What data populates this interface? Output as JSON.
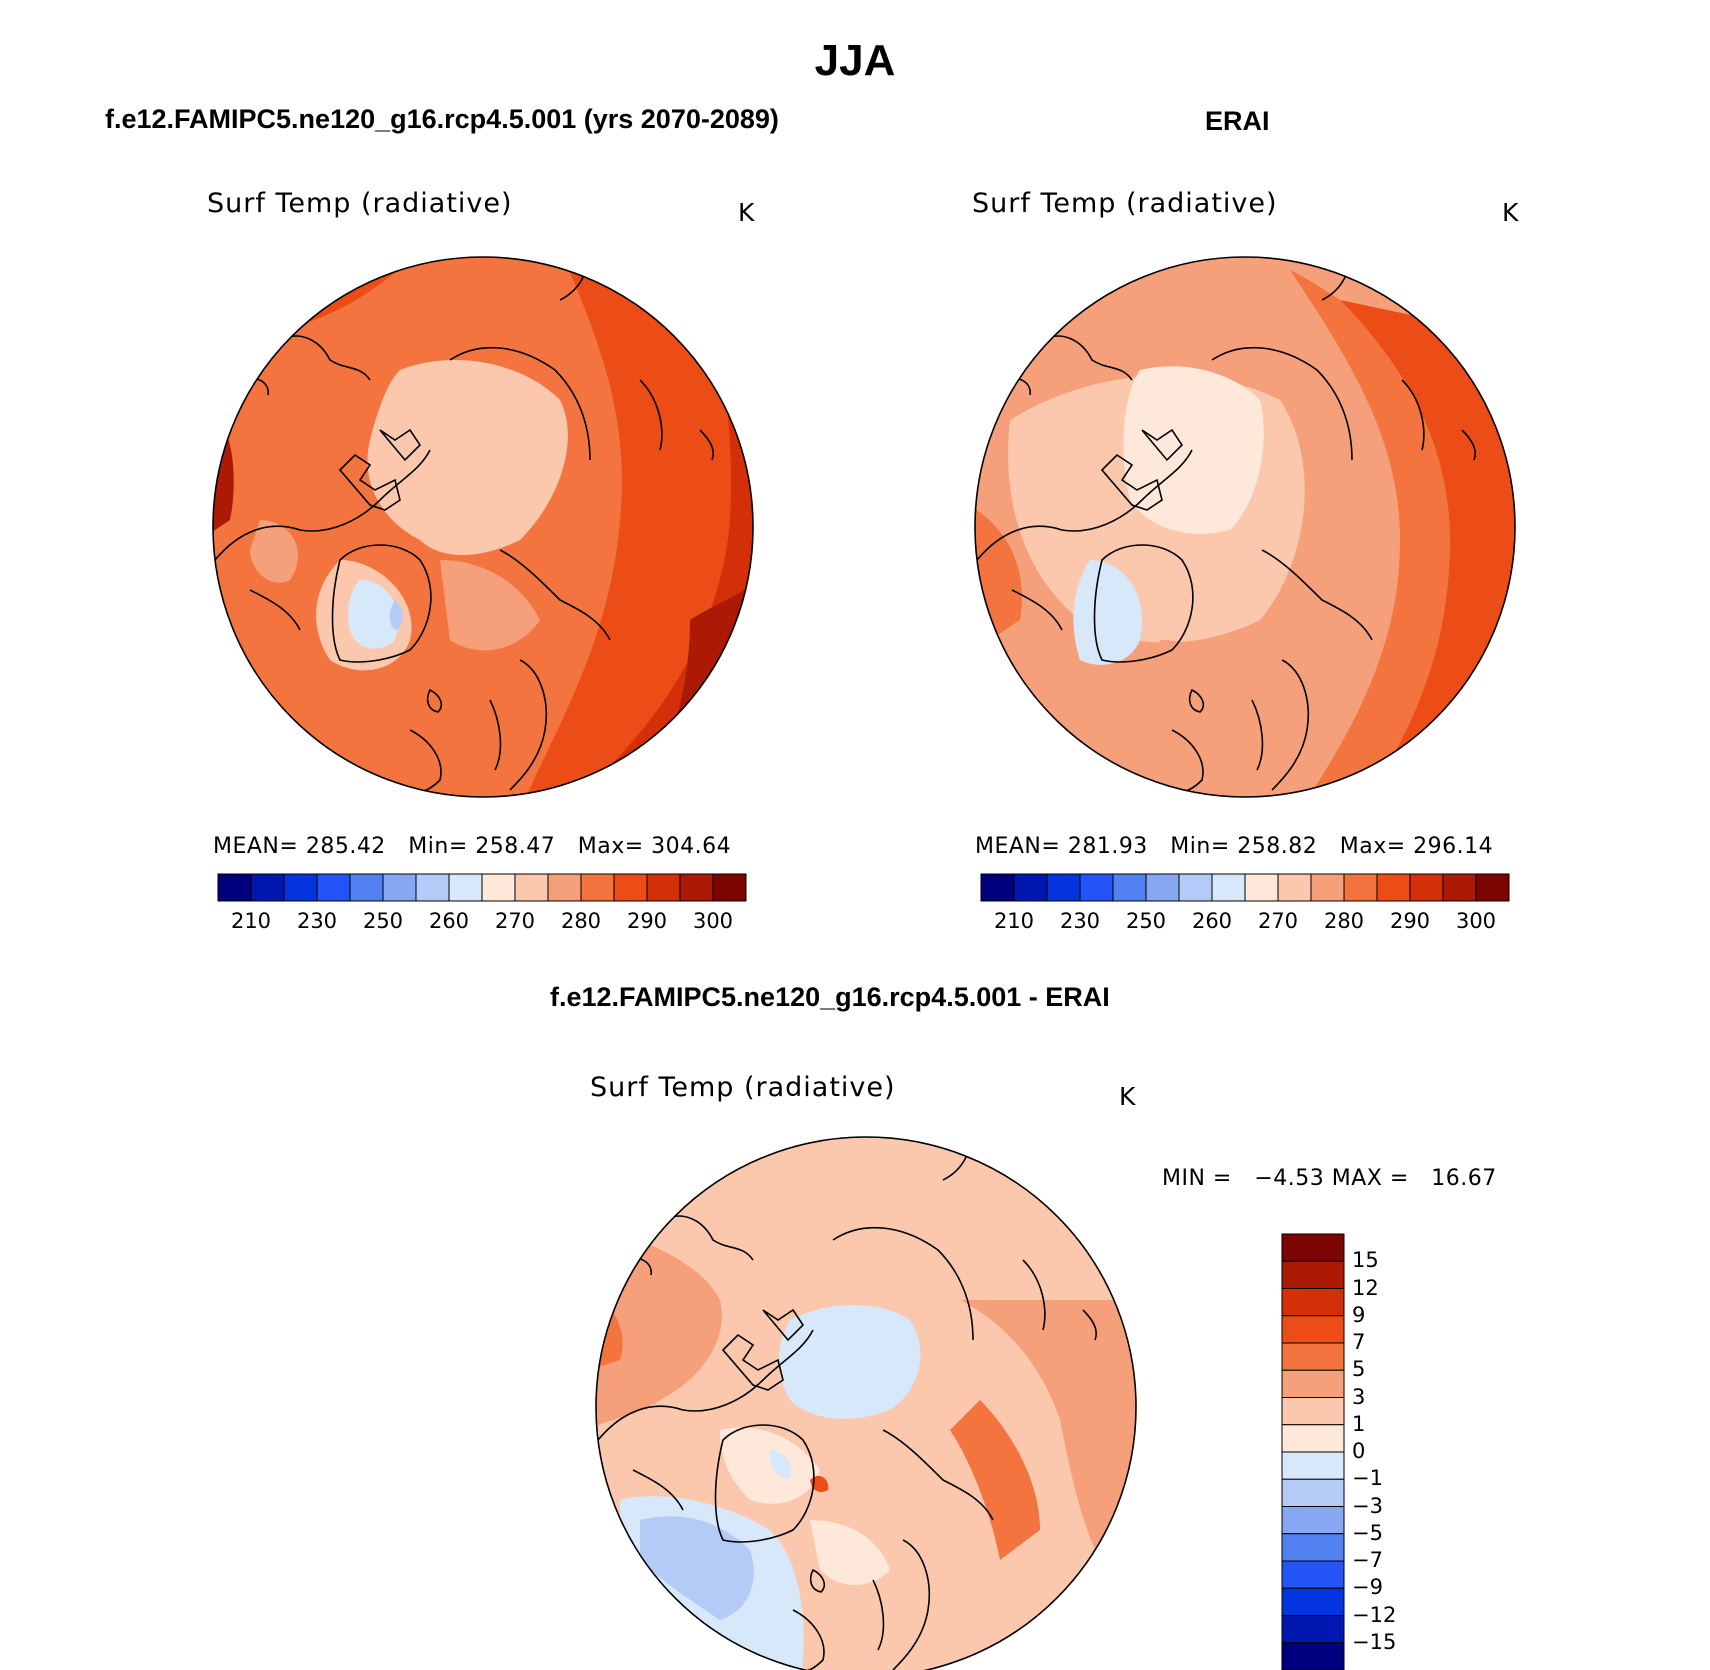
{
  "title": "JJA",
  "panels": [
    {
      "title": "f.e12.FAMIPC5.ne120_g16.rcp4.5.001 (yrs 2070-2089)",
      "variable": "Surf Temp (radiative)",
      "units": "K",
      "stats": {
        "mean_label": "MEAN=",
        "mean": "285.42",
        "min_label": "Min=",
        "min": "258.47",
        "max_label": "Max=",
        "max": "304.64"
      }
    },
    {
      "title": "ERAI",
      "variable": "Surf Temp (radiative)",
      "units": "K",
      "stats": {
        "mean_label": "MEAN=",
        "mean": "281.93",
        "min_label": "Min=",
        "min": "258.82",
        "max_label": "Max=",
        "max": "296.14"
      }
    }
  ],
  "diff_panel": {
    "title": "f.e12.FAMIPC5.ne120_g16.rcp4.5.001 - ERAI",
    "variable": "Surf Temp (radiative)",
    "units": "K",
    "range_text": {
      "min_label": "MIN =",
      "min": "−4.53",
      "max_label": "MAX =",
      "max": "16.67"
    }
  },
  "colorbar_abs": {
    "colors": [
      "#00007e",
      "#0018b0",
      "#0434de",
      "#2454f6",
      "#5281f2",
      "#86a8f0",
      "#b5cbf7",
      "#d7e8fa",
      "#fde8d9",
      "#fbc8ad",
      "#f6a07b",
      "#f3743f",
      "#ec4c16",
      "#d3300a",
      "#ac1a06",
      "#7c0401"
    ],
    "tick_labels": [
      "210",
      "230",
      "250",
      "260",
      "270",
      "280",
      "290",
      "300"
    ]
  },
  "colorbar_diff": {
    "colors": [
      "#7c0401",
      "#ac1a06",
      "#d3300a",
      "#ec4c16",
      "#f3743f",
      "#f6a07b",
      "#fbc8ad",
      "#fde8d9",
      "#d7e8fa",
      "#b5cbf7",
      "#86a8f0",
      "#5281f2",
      "#2454f6",
      "#0434de",
      "#0018b0",
      "#00007e"
    ],
    "tick_labels": [
      "15",
      "12",
      "9",
      "7",
      "5",
      "3",
      "1",
      "0",
      "−1",
      "−3",
      "−5",
      "−7",
      "−9",
      "−12",
      "−15"
    ]
  }
}
